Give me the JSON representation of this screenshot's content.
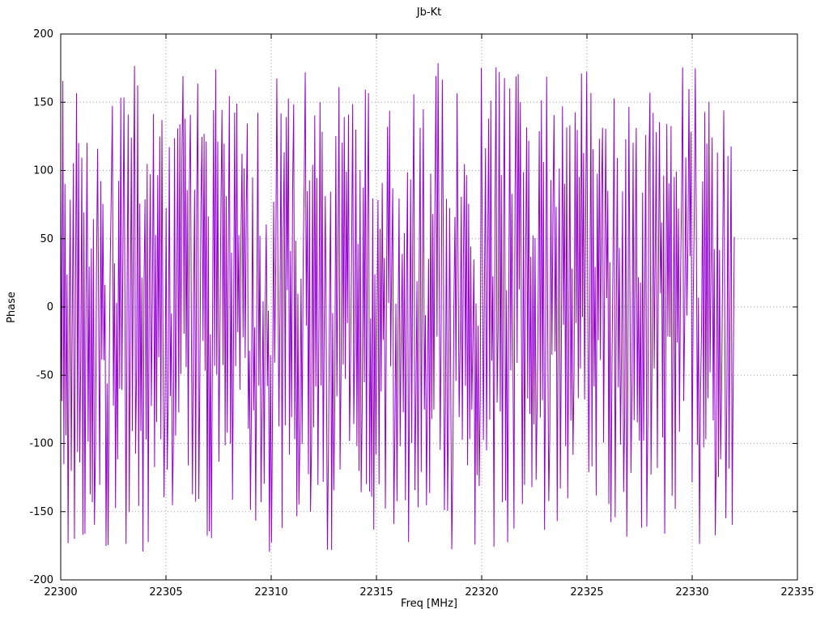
{
  "figure": {
    "background": "#ffffff",
    "border_color": "#000000",
    "grid_color": "#9e9e9e"
  },
  "chart_data": {
    "type": "line",
    "title": "Jb-Kt",
    "xlabel": "Freq [MHz]",
    "ylabel": "Phase",
    "xlim": [
      22300,
      22335
    ],
    "ylim": [
      -200,
      200
    ],
    "x_ticks": [
      22300,
      22305,
      22310,
      22315,
      22320,
      22325,
      22330,
      22335
    ],
    "y_ticks": [
      -200,
      -150,
      -100,
      -50,
      0,
      50,
      100,
      150,
      200
    ],
    "grid": "dotted-major",
    "legend": "none",
    "line_color": "#9400d3",
    "series": [
      {
        "name": "Jb-Kt",
        "x_start": 22300,
        "x_end": 22332,
        "n_points": 640,
        "y_wrap_range": [
          -180,
          180
        ],
        "generator": {
          "type": "lcg-wrapped-phase",
          "seed": 20130217,
          "phase_step_deg": 150,
          "phase_jitter_deg": 200
        }
      }
    ]
  }
}
